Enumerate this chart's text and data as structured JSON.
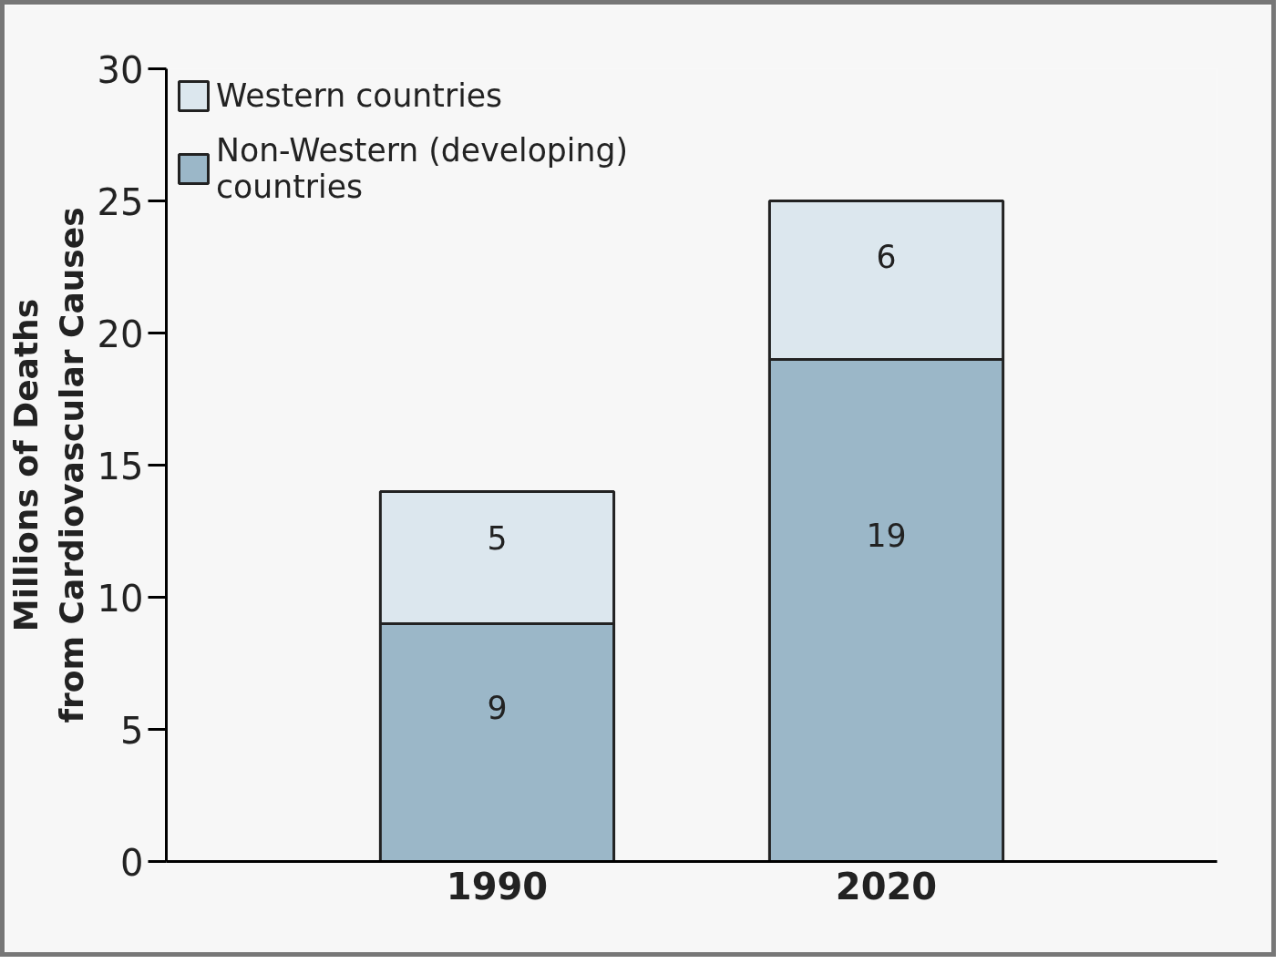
{
  "chart_data": {
    "type": "bar",
    "stacked": true,
    "ylabel": "Millions of Deaths from Cardiovascular Causes",
    "categories": [
      "1990",
      "2020"
    ],
    "series": [
      {
        "name": "Non-Western (developing) countries",
        "color": "#9bb7c8",
        "values": [
          9,
          19
        ]
      },
      {
        "name": "Western countries",
        "color": "#dce7ee",
        "values": [
          5,
          6
        ]
      }
    ],
    "ylim": [
      0,
      30
    ],
    "yticks": [
      0,
      5,
      10,
      15,
      20,
      25,
      30
    ],
    "grid": false,
    "legend": "top left",
    "data_labels": true
  }
}
